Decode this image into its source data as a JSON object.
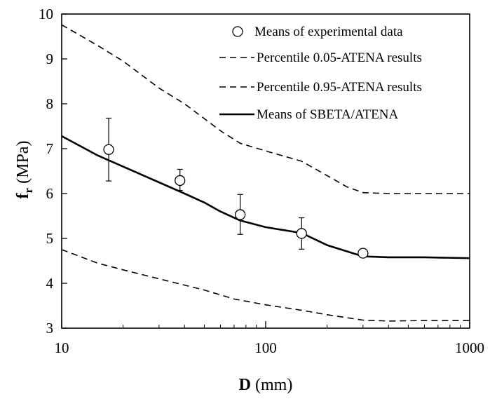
{
  "chart_data": {
    "type": "line",
    "x_scale": "log",
    "xlim": [
      10,
      1000
    ],
    "ylim": [
      3,
      10
    ],
    "x_ticks": [
      10,
      100,
      1000
    ],
    "y_ticks": [
      3,
      4,
      5,
      6,
      7,
      8,
      9,
      10
    ],
    "xlabel": {
      "main": "D",
      "unit": " (mm)"
    },
    "ylabel": {
      "main": "f",
      "sub": "r",
      "unit": " (MPa)"
    },
    "grid": false,
    "legend_position": "top-right",
    "series": [
      {
        "name": "Means of experimental data",
        "kind": "points",
        "points": [
          {
            "x": 17,
            "y": 6.98,
            "low": 6.28,
            "high": 7.68
          },
          {
            "x": 38,
            "y": 6.29,
            "low": 6.07,
            "high": 6.54
          },
          {
            "x": 75,
            "y": 5.53,
            "low": 5.09,
            "high": 5.98
          },
          {
            "x": 150,
            "y": 5.11,
            "low": 4.76,
            "high": 5.46
          },
          {
            "x": 300,
            "y": 4.67,
            "low": 4.62,
            "high": 4.72
          }
        ]
      },
      {
        "name": "Percentile 0.05-ATENA results",
        "kind": "dashed-line",
        "points": [
          [
            10,
            4.75
          ],
          [
            15,
            4.45
          ],
          [
            20,
            4.3
          ],
          [
            30,
            4.1
          ],
          [
            50,
            3.85
          ],
          [
            70,
            3.65
          ],
          [
            100,
            3.52
          ],
          [
            150,
            3.4
          ],
          [
            200,
            3.3
          ],
          [
            300,
            3.18
          ],
          [
            400,
            3.16
          ],
          [
            600,
            3.17
          ],
          [
            1000,
            3.17
          ]
        ]
      },
      {
        "name": "Percentile 0.95-ATENA results",
        "kind": "dashed-line",
        "points": [
          [
            10,
            9.76
          ],
          [
            15,
            9.3
          ],
          [
            20,
            8.95
          ],
          [
            30,
            8.35
          ],
          [
            40,
            8.0
          ],
          [
            60,
            7.4
          ],
          [
            75,
            7.12
          ],
          [
            100,
            6.95
          ],
          [
            150,
            6.72
          ],
          [
            200,
            6.4
          ],
          [
            250,
            6.15
          ],
          [
            300,
            6.02
          ],
          [
            400,
            6.0
          ],
          [
            600,
            6.0
          ],
          [
            1000,
            6.0
          ]
        ]
      },
      {
        "name": "Means of SBETA/ATENA",
        "kind": "solid-line",
        "points": [
          [
            10,
            7.28
          ],
          [
            15,
            6.85
          ],
          [
            20,
            6.6
          ],
          [
            30,
            6.25
          ],
          [
            40,
            6.0
          ],
          [
            50,
            5.8
          ],
          [
            60,
            5.6
          ],
          [
            75,
            5.4
          ],
          [
            100,
            5.25
          ],
          [
            150,
            5.12
          ],
          [
            200,
            4.85
          ],
          [
            300,
            4.6
          ],
          [
            400,
            4.58
          ],
          [
            600,
            4.58
          ],
          [
            1000,
            4.56
          ]
        ]
      }
    ]
  }
}
